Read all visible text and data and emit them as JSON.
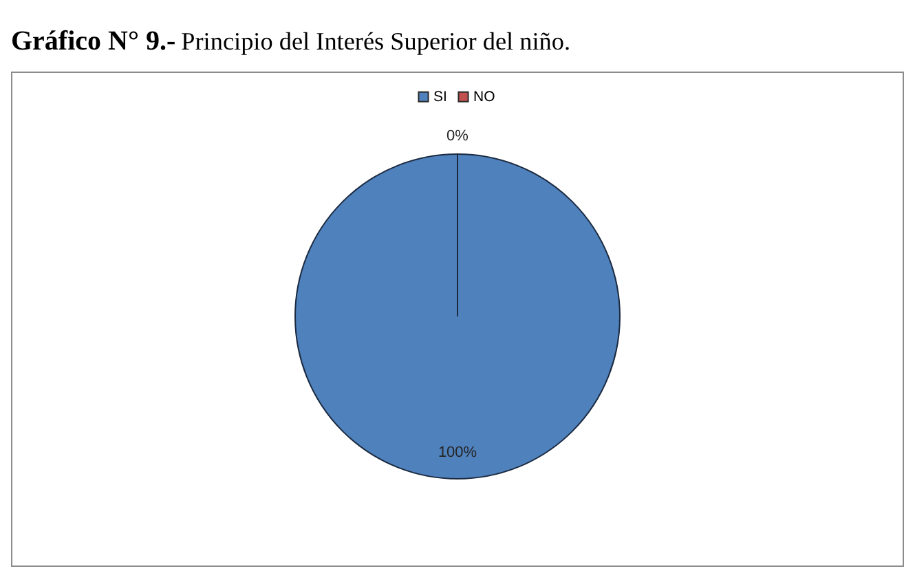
{
  "chart_data": {
    "type": "pie",
    "title": "Gráfico N° 9.-",
    "subtitle": "Principio del Interés Superior del niño.",
    "categories": [
      "SI",
      "NO"
    ],
    "values": [
      100,
      0
    ],
    "colors": [
      "#4f81bd",
      "#c0504d"
    ],
    "value_labels": [
      "100%",
      "0%"
    ],
    "legend": "top"
  }
}
